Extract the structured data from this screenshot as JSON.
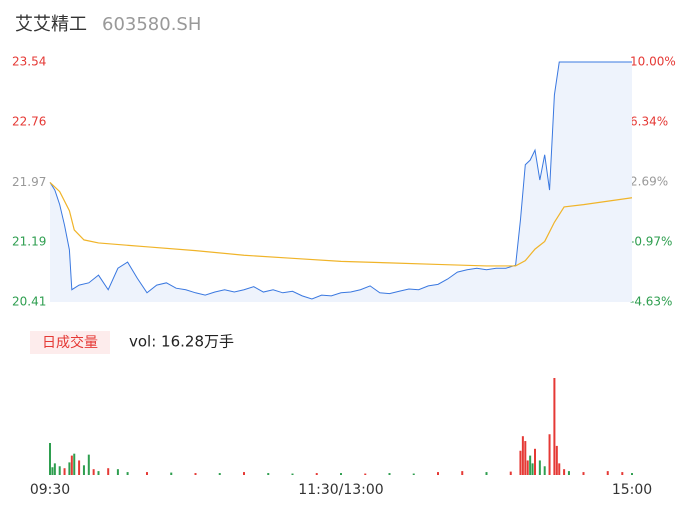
{
  "chart_data": {
    "type": "intraday",
    "title": "艾艾精工",
    "subtitle": "603580.SH",
    "x": [
      0,
      2,
      4,
      6,
      8,
      9,
      12,
      16,
      20,
      24,
      28,
      32,
      36,
      40,
      44,
      48,
      52,
      56,
      60,
      64,
      68,
      72,
      76,
      80,
      84,
      88,
      92,
      96,
      100,
      104,
      108,
      112,
      116,
      120,
      124,
      128,
      132,
      136,
      140,
      144,
      148,
      152,
      156,
      160,
      164,
      168,
      172,
      176,
      180,
      184,
      188,
      192,
      194,
      196,
      198,
      200,
      202,
      204,
      206,
      208,
      210,
      214,
      220,
      230,
      240
    ],
    "xlim": [
      0,
      240
    ],
    "xticks": [
      {
        "value": 0,
        "label": "09:30"
      },
      {
        "value": 120,
        "label": "11:30/13:00"
      },
      {
        "value": 240,
        "label": "15:00"
      }
    ],
    "series": [
      {
        "color": "#3a78e0",
        "values": [
          21.97,
          21.87,
          21.68,
          21.41,
          21.09,
          20.57,
          20.63,
          20.66,
          20.76,
          20.57,
          20.85,
          20.93,
          20.72,
          20.53,
          20.63,
          20.66,
          20.59,
          20.57,
          20.53,
          20.5,
          20.54,
          20.57,
          20.54,
          20.57,
          20.61,
          20.54,
          20.57,
          20.53,
          20.55,
          20.49,
          20.45,
          20.5,
          20.49,
          20.53,
          20.54,
          20.57,
          20.62,
          20.53,
          20.52,
          20.55,
          20.58,
          20.57,
          20.62,
          20.64,
          20.71,
          20.8,
          20.83,
          20.85,
          20.83,
          20.85,
          20.85,
          20.89,
          21.48,
          22.2,
          22.26,
          22.39,
          22.0,
          22.33,
          21.87,
          23.11,
          23.54,
          23.54,
          23.54,
          23.54,
          23.54
        ]
      }
    ],
    "average": {
      "color": "#f0b429",
      "x": [
        0,
        4,
        8,
        10,
        14,
        20,
        40,
        60,
        80,
        100,
        120,
        140,
        160,
        180,
        192,
        196,
        200,
        204,
        208,
        212,
        220,
        240
      ],
      "values": [
        21.97,
        21.85,
        21.6,
        21.35,
        21.22,
        21.18,
        21.13,
        21.08,
        21.02,
        20.98,
        20.94,
        20.92,
        20.9,
        20.88,
        20.88,
        20.95,
        21.1,
        21.2,
        21.45,
        21.65,
        21.68,
        21.77
      ]
    },
    "ylim": [
      20.41,
      23.54
    ],
    "yticks": [
      23.54,
      22.76,
      21.97,
      21.19,
      20.41
    ],
    "ytick_colors": [
      "#e53935",
      "#e53935",
      "#999999",
      "#2e9e4f",
      "#2e9e4f"
    ],
    "y2lim": [
      -4.63,
      10.0
    ],
    "y2ticks": [
      {
        "value": 10.0,
        "label": "10.00%"
      },
      {
        "value": 6.34,
        "label": "6.34%"
      },
      {
        "value": 2.69,
        "label": "2.69%"
      },
      {
        "value": -0.97,
        "label": "-0.97%"
      },
      {
        "value": -4.63,
        "label": "-4.63%"
      }
    ],
    "volume": {
      "label": "日成交量",
      "text": "vol: 16.28万手",
      "ylim": [
        0,
        10000
      ],
      "x": [
        0,
        1,
        2,
        4,
        6,
        8,
        9,
        10,
        12,
        14,
        16,
        18,
        20,
        24,
        28,
        32,
        40,
        50,
        60,
        70,
        80,
        90,
        100,
        110,
        120,
        130,
        140,
        150,
        160,
        170,
        180,
        190,
        194,
        195,
        196,
        197,
        198,
        199,
        200,
        202,
        204,
        206,
        208,
        209,
        210,
        212,
        214,
        220,
        230,
        236,
        240
      ],
      "values": [
        3300,
        800,
        1200,
        900,
        700,
        1300,
        2000,
        2200,
        1500,
        1000,
        2100,
        600,
        400,
        700,
        600,
        300,
        300,
        250,
        200,
        200,
        300,
        200,
        150,
        200,
        200,
        150,
        200,
        150,
        300,
        400,
        300,
        350,
        2500,
        4000,
        3500,
        1500,
        2000,
        1200,
        2700,
        1500,
        900,
        4200,
        10000,
        3000,
        1200,
        600,
        400,
        300,
        400,
        300,
        200
      ],
      "colors": [
        "#2e9e4f",
        "#2e9e4f",
        "#2e9e4f",
        "#2e9e4f",
        "#e53935",
        "#2e9e4f",
        "#e53935",
        "#2e9e4f",
        "#e53935",
        "#2e9e4f",
        "#2e9e4f",
        "#e53935",
        "#2e9e4f",
        "#e53935",
        "#2e9e4f",
        "#2e9e4f",
        "#e53935",
        "#2e9e4f",
        "#e53935",
        "#2e9e4f",
        "#e53935",
        "#2e9e4f",
        "#2e9e4f",
        "#e53935",
        "#2e9e4f",
        "#e53935",
        "#2e9e4f",
        "#2e9e4f",
        "#e53935",
        "#e53935",
        "#2e9e4f",
        "#e53935",
        "#e53935",
        "#e53935",
        "#e53935",
        "#e53935",
        "#2e9e4f",
        "#2e9e4f",
        "#e53935",
        "#2e9e4f",
        "#2e9e4f",
        "#e53935",
        "#e53935",
        "#e53935",
        "#e53935",
        "#e53935",
        "#2e9e4f",
        "#e53935",
        "#e53935",
        "#e53935",
        "#2e9e4f"
      ]
    }
  }
}
